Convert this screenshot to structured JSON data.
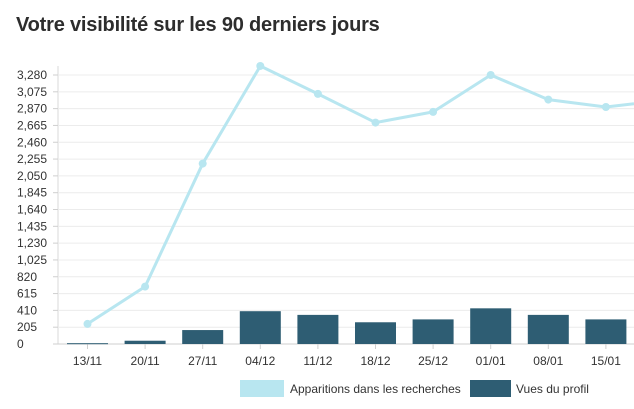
{
  "title": "Votre visibilité sur les 90 derniers jours",
  "chart_data": {
    "type": "bar+line",
    "categories": [
      "13/11",
      "20/11",
      "27/11",
      "04/12",
      "11/12",
      "18/12",
      "25/12",
      "01/01",
      "08/01",
      "15/01"
    ],
    "y_ticks": [
      "0",
      "205",
      "410",
      "615",
      "820",
      "1,025",
      "1,230",
      "1,435",
      "1,640",
      "1,845",
      "2,050",
      "2,255",
      "2,460",
      "2,665",
      "2,870",
      "3,075",
      "3,280"
    ],
    "ylim": [
      0,
      3280
    ],
    "series": [
      {
        "name": "Apparitions dans les recherches",
        "type": "line",
        "color": "#b8e6f0",
        "values": [
          245,
          700,
          2200,
          3390,
          3050,
          2700,
          2830,
          3280,
          2980,
          2890
        ],
        "trailing_value": 2930
      },
      {
        "name": "Vues du profil",
        "type": "bar",
        "color": "#2e5d73",
        "values": [
          10,
          40,
          170,
          400,
          355,
          265,
          300,
          435,
          355,
          300
        ]
      }
    ],
    "legend": [
      "Apparitions dans les recherches",
      "Vues du profil"
    ],
    "legend_position": "bottom-right",
    "grid": true
  }
}
